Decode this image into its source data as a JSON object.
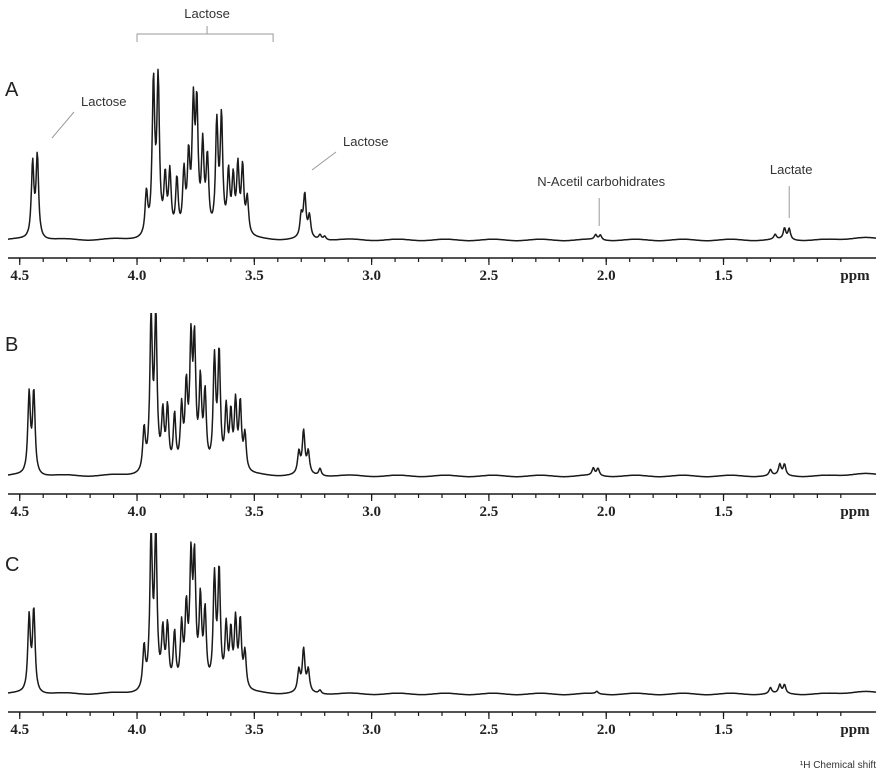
{
  "chart_data": {
    "type": "line",
    "x_axis": {
      "label": "ppm",
      "tick_labels": [
        "4.5",
        "4.0",
        "3.5",
        "3.0",
        "2.5",
        "2.0",
        "1.5"
      ],
      "tick_values": [
        4.5,
        4.0,
        3.5,
        3.0,
        2.5,
        2.0,
        1.5
      ],
      "xlim": [
        4.55,
        0.85
      ],
      "reversed": true
    },
    "footer_label": "¹H Chemical shift",
    "grid": false,
    "panels": [
      {
        "label": "A",
        "annotations": [
          {
            "text": "Lactose",
            "ppm": 4.43
          },
          {
            "text": "Lactose",
            "ppm_range": [
              3.42,
              4.0
            ]
          },
          {
            "text": "Lactose",
            "ppm": 3.28
          },
          {
            "text": "N-Acetil carbohidrates",
            "ppm": 2.03
          },
          {
            "text": "Lactate",
            "ppm": 1.22
          }
        ],
        "peaks": [
          {
            "ppm": 4.445,
            "h": 0.62
          },
          {
            "ppm": 4.425,
            "h": 0.68
          },
          {
            "ppm": 3.96,
            "h": 0.35
          },
          {
            "ppm": 3.93,
            "h": 1.25
          },
          {
            "ppm": 3.91,
            "h": 1.25
          },
          {
            "ppm": 3.88,
            "h": 0.45
          },
          {
            "ppm": 3.86,
            "h": 0.5
          },
          {
            "ppm": 3.83,
            "h": 0.45
          },
          {
            "ppm": 3.8,
            "h": 0.5
          },
          {
            "ppm": 3.78,
            "h": 0.6
          },
          {
            "ppm": 3.76,
            "h": 1.0
          },
          {
            "ppm": 3.745,
            "h": 1.0
          },
          {
            "ppm": 3.72,
            "h": 0.7
          },
          {
            "ppm": 3.7,
            "h": 0.6
          },
          {
            "ppm": 3.66,
            "h": 0.9
          },
          {
            "ppm": 3.64,
            "h": 0.95
          },
          {
            "ppm": 3.61,
            "h": 0.5
          },
          {
            "ppm": 3.59,
            "h": 0.45
          },
          {
            "ppm": 3.57,
            "h": 0.55
          },
          {
            "ppm": 3.55,
            "h": 0.55
          },
          {
            "ppm": 3.53,
            "h": 0.3
          },
          {
            "ppm": 3.3,
            "h": 0.18
          },
          {
            "ppm": 3.285,
            "h": 0.35
          },
          {
            "ppm": 3.265,
            "h": 0.18
          },
          {
            "ppm": 3.22,
            "h": 0.04
          },
          {
            "ppm": 3.2,
            "h": 0.03
          },
          {
            "ppm": 2.045,
            "h": 0.04
          },
          {
            "ppm": 2.025,
            "h": 0.04
          },
          {
            "ppm": 1.28,
            "h": 0.04
          },
          {
            "ppm": 1.24,
            "h": 0.09
          },
          {
            "ppm": 1.22,
            "h": 0.09
          }
        ]
      },
      {
        "label": "B",
        "annotations": [],
        "peaks": [
          {
            "ppm": 4.46,
            "h": 0.66
          },
          {
            "ppm": 4.44,
            "h": 0.68
          },
          {
            "ppm": 3.97,
            "h": 0.35
          },
          {
            "ppm": 3.94,
            "h": 1.25
          },
          {
            "ppm": 3.92,
            "h": 1.25
          },
          {
            "ppm": 3.89,
            "h": 0.45
          },
          {
            "ppm": 3.87,
            "h": 0.5
          },
          {
            "ppm": 3.84,
            "h": 0.45
          },
          {
            "ppm": 3.81,
            "h": 0.5
          },
          {
            "ppm": 3.79,
            "h": 0.65
          },
          {
            "ppm": 3.77,
            "h": 1.0
          },
          {
            "ppm": 3.755,
            "h": 1.0
          },
          {
            "ppm": 3.73,
            "h": 0.7
          },
          {
            "ppm": 3.71,
            "h": 0.6
          },
          {
            "ppm": 3.67,
            "h": 0.9
          },
          {
            "ppm": 3.65,
            "h": 0.95
          },
          {
            "ppm": 3.62,
            "h": 0.5
          },
          {
            "ppm": 3.6,
            "h": 0.45
          },
          {
            "ppm": 3.58,
            "h": 0.55
          },
          {
            "ppm": 3.56,
            "h": 0.55
          },
          {
            "ppm": 3.54,
            "h": 0.3
          },
          {
            "ppm": 3.31,
            "h": 0.18
          },
          {
            "ppm": 3.29,
            "h": 0.35
          },
          {
            "ppm": 3.27,
            "h": 0.18
          },
          {
            "ppm": 3.22,
            "h": 0.06
          },
          {
            "ppm": 2.055,
            "h": 0.06
          },
          {
            "ppm": 2.035,
            "h": 0.06
          },
          {
            "ppm": 1.3,
            "h": 0.05
          },
          {
            "ppm": 1.26,
            "h": 0.09
          },
          {
            "ppm": 1.24,
            "h": 0.09
          }
        ]
      },
      {
        "label": "C",
        "annotations": [],
        "peaks": [
          {
            "ppm": 4.46,
            "h": 0.62
          },
          {
            "ppm": 4.44,
            "h": 0.68
          },
          {
            "ppm": 3.97,
            "h": 0.35
          },
          {
            "ppm": 3.94,
            "h": 1.25
          },
          {
            "ppm": 3.92,
            "h": 1.25
          },
          {
            "ppm": 3.89,
            "h": 0.45
          },
          {
            "ppm": 3.87,
            "h": 0.5
          },
          {
            "ppm": 3.84,
            "h": 0.45
          },
          {
            "ppm": 3.81,
            "h": 0.5
          },
          {
            "ppm": 3.79,
            "h": 0.62
          },
          {
            "ppm": 3.77,
            "h": 1.0
          },
          {
            "ppm": 3.755,
            "h": 1.0
          },
          {
            "ppm": 3.73,
            "h": 0.7
          },
          {
            "ppm": 3.71,
            "h": 0.6
          },
          {
            "ppm": 3.67,
            "h": 0.9
          },
          {
            "ppm": 3.65,
            "h": 0.95
          },
          {
            "ppm": 3.62,
            "h": 0.5
          },
          {
            "ppm": 3.6,
            "h": 0.45
          },
          {
            "ppm": 3.58,
            "h": 0.55
          },
          {
            "ppm": 3.56,
            "h": 0.55
          },
          {
            "ppm": 3.54,
            "h": 0.3
          },
          {
            "ppm": 3.31,
            "h": 0.18
          },
          {
            "ppm": 3.29,
            "h": 0.35
          },
          {
            "ppm": 3.27,
            "h": 0.18
          },
          {
            "ppm": 3.22,
            "h": 0.03
          },
          {
            "ppm": 2.04,
            "h": 0.02
          },
          {
            "ppm": 1.3,
            "h": 0.05
          },
          {
            "ppm": 1.26,
            "h": 0.07
          },
          {
            "ppm": 1.24,
            "h": 0.07
          }
        ]
      }
    ]
  }
}
